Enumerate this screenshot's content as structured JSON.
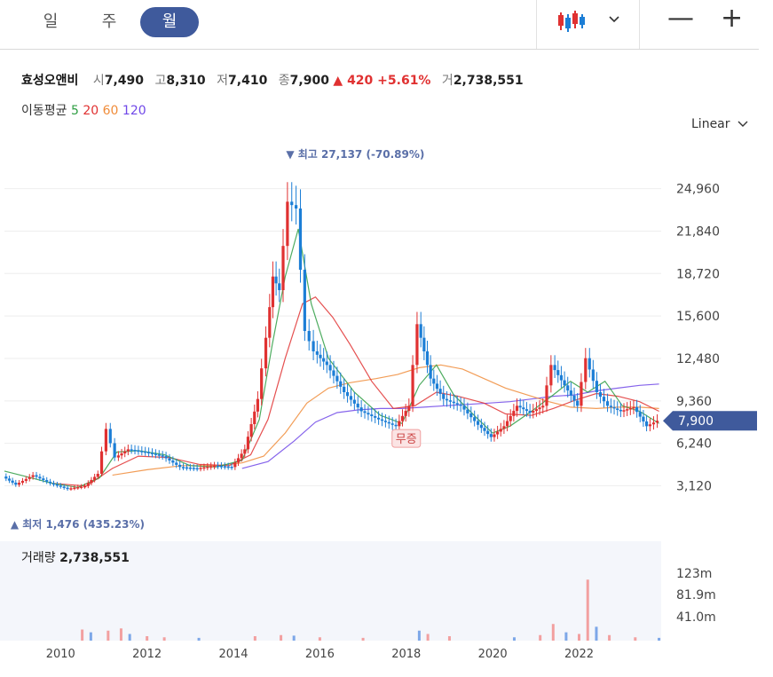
{
  "tabs": [
    {
      "label": "일",
      "active": false
    },
    {
      "label": "주",
      "active": false
    },
    {
      "label": "월",
      "active": true
    }
  ],
  "toolbar": {
    "chart_type_icon": "candlestick-icon",
    "dropdown_icon": "chevron-down-icon",
    "zoom_out": "—",
    "zoom_in": "+"
  },
  "quote": {
    "name": "효성오앤비",
    "open_label": "시",
    "open": "7,490",
    "high_label": "고",
    "high": "8,310",
    "low_label": "저",
    "low": "7,410",
    "close_label": "종",
    "close": "7,900",
    "change": "▲ 420 +5.61%",
    "volume_label": "거",
    "volume": "2,738,551"
  },
  "moving_average": {
    "label": "이동평균",
    "periods": [
      {
        "label": "5",
        "color": "#2f9e44"
      },
      {
        "label": "20",
        "color": "#e03131"
      },
      {
        "label": "60",
        "color": "#f08c3a"
      },
      {
        "label": "120",
        "color": "#7048e8"
      }
    ]
  },
  "scale_mode": "Linear",
  "volume_panel": {
    "label": "거래량",
    "value": "2,738,551",
    "ticks": [
      "123m",
      "81.9m",
      "41.0m"
    ]
  },
  "chart_data": {
    "type": "candlestick",
    "period": "monthly",
    "x_ticks": [
      "2010",
      "2012",
      "2014",
      "2016",
      "2018",
      "2020",
      "2022"
    ],
    "y_ticks": [
      24960,
      21840,
      18720,
      15600,
      12480,
      9360,
      6240,
      3120
    ],
    "y_tick_labels": [
      "24,960",
      "21,840",
      "18,720",
      "15,600",
      "12,480",
      "9,360",
      "6,240",
      "3,120"
    ],
    "ylim": [
      1000,
      28000
    ],
    "x_range": [
      2008.7,
      2023.9
    ],
    "current_price": 7900,
    "current_price_label": "7,900",
    "high_annotation": {
      "text": "최고 27,137 (-70.89%)",
      "value": 27137,
      "x": 2015.3
    },
    "low_annotation": {
      "text": "최저 1,476 (435.23%)",
      "value": 1476,
      "x": 2008.8
    },
    "event_marker": {
      "text": "무증",
      "x": 2018.0,
      "value": 6600
    },
    "price_series": [
      [
        2008.7,
        3800
      ],
      [
        2009.0,
        3200
      ],
      [
        2009.4,
        3900
      ],
      [
        2009.8,
        3300
      ],
      [
        2010.2,
        2900
      ],
      [
        2010.6,
        3100
      ],
      [
        2010.9,
        4000
      ],
      [
        2011.1,
        7300
      ],
      [
        2011.3,
        5200
      ],
      [
        2011.6,
        5800
      ],
      [
        2012.0,
        5600
      ],
      [
        2012.4,
        5300
      ],
      [
        2012.8,
        4500
      ],
      [
        2013.2,
        4400
      ],
      [
        2013.6,
        4600
      ],
      [
        2014.0,
        4500
      ],
      [
        2014.3,
        5800
      ],
      [
        2014.6,
        9500
      ],
      [
        2014.8,
        14000
      ],
      [
        2014.95,
        18500
      ],
      [
        2015.1,
        17500
      ],
      [
        2015.3,
        24000
      ],
      [
        2015.5,
        23500
      ],
      [
        2015.7,
        14500
      ],
      [
        2015.9,
        13000
      ],
      [
        2016.2,
        12000
      ],
      [
        2016.6,
        10000
      ],
      [
        2017.0,
        8600
      ],
      [
        2017.4,
        8000
      ],
      [
        2017.8,
        7500
      ],
      [
        2018.1,
        9000
      ],
      [
        2018.3,
        15000
      ],
      [
        2018.6,
        11000
      ],
      [
        2018.9,
        9500
      ],
      [
        2019.3,
        9000
      ],
      [
        2019.7,
        7600
      ],
      [
        2020.0,
        6700
      ],
      [
        2020.3,
        7500
      ],
      [
        2020.6,
        9000
      ],
      [
        2020.9,
        8500
      ],
      [
        2021.2,
        9000
      ],
      [
        2021.4,
        12000
      ],
      [
        2021.7,
        10500
      ],
      [
        2022.0,
        9000
      ],
      [
        2022.2,
        12500
      ],
      [
        2022.45,
        10000
      ],
      [
        2022.7,
        9000
      ],
      [
        2023.0,
        8600
      ],
      [
        2023.3,
        8900
      ],
      [
        2023.6,
        7500
      ],
      [
        2023.85,
        7900
      ]
    ],
    "ma5": [
      [
        2008.7,
        4200
      ],
      [
        2009.2,
        3800
      ],
      [
        2009.8,
        3300
      ],
      [
        2010.4,
        3000
      ],
      [
        2010.9,
        3700
      ],
      [
        2011.3,
        5600
      ],
      [
        2011.8,
        5700
      ],
      [
        2012.4,
        5400
      ],
      [
        2013.0,
        4600
      ],
      [
        2013.6,
        4500
      ],
      [
        2014.2,
        5000
      ],
      [
        2014.6,
        8000
      ],
      [
        2014.9,
        13500
      ],
      [
        2015.2,
        18500
      ],
      [
        2015.5,
        22000
      ],
      [
        2015.8,
        16500
      ],
      [
        2016.2,
        12500
      ],
      [
        2016.8,
        10000
      ],
      [
        2017.4,
        8300
      ],
      [
        2017.9,
        7700
      ],
      [
        2018.3,
        10500
      ],
      [
        2018.7,
        12000
      ],
      [
        2019.1,
        9800
      ],
      [
        2019.6,
        8200
      ],
      [
        2020.0,
        7000
      ],
      [
        2020.4,
        7500
      ],
      [
        2020.9,
        8600
      ],
      [
        2021.4,
        9800
      ],
      [
        2021.8,
        10800
      ],
      [
        2022.2,
        10000
      ],
      [
        2022.6,
        10800
      ],
      [
        2023.0,
        9000
      ],
      [
        2023.4,
        8600
      ],
      [
        2023.85,
        7700
      ]
    ],
    "ma20": [
      [
        2009.8,
        3300
      ],
      [
        2010.6,
        3100
      ],
      [
        2011.2,
        4400
      ],
      [
        2011.8,
        5300
      ],
      [
        2012.5,
        5200
      ],
      [
        2013.2,
        4700
      ],
      [
        2013.9,
        4600
      ],
      [
        2014.4,
        5400
      ],
      [
        2014.8,
        8000
      ],
      [
        2015.2,
        12500
      ],
      [
        2015.6,
        16500
      ],
      [
        2015.9,
        17000
      ],
      [
        2016.3,
        15500
      ],
      [
        2016.7,
        13500
      ],
      [
        2017.2,
        10800
      ],
      [
        2017.7,
        8800
      ],
      [
        2018.2,
        9000
      ],
      [
        2018.7,
        10000
      ],
      [
        2019.2,
        9700
      ],
      [
        2019.8,
        9200
      ],
      [
        2020.3,
        8400
      ],
      [
        2020.9,
        8300
      ],
      [
        2021.4,
        8800
      ],
      [
        2021.9,
        9400
      ],
      [
        2022.4,
        9900
      ],
      [
        2022.9,
        9700
      ],
      [
        2023.4,
        9300
      ],
      [
        2023.85,
        8600
      ]
    ],
    "ma60": [
      [
        2011.2,
        3900
      ],
      [
        2012.0,
        4300
      ],
      [
        2012.8,
        4600
      ],
      [
        2013.6,
        4600
      ],
      [
        2014.2,
        4800
      ],
      [
        2014.7,
        5300
      ],
      [
        2015.2,
        7000
      ],
      [
        2015.7,
        9200
      ],
      [
        2016.2,
        10300
      ],
      [
        2016.7,
        10700
      ],
      [
        2017.3,
        11000
      ],
      [
        2017.8,
        11300
      ],
      [
        2018.3,
        11800
      ],
      [
        2018.8,
        12000
      ],
      [
        2019.3,
        11700
      ],
      [
        2019.8,
        11000
      ],
      [
        2020.3,
        10300
      ],
      [
        2020.8,
        9800
      ],
      [
        2021.3,
        9300
      ],
      [
        2021.8,
        8900
      ],
      [
        2022.4,
        8800
      ],
      [
        2022.9,
        8900
      ],
      [
        2023.4,
        8900
      ],
      [
        2023.85,
        8800
      ]
    ],
    "ma120": [
      [
        2014.2,
        4400
      ],
      [
        2014.8,
        4900
      ],
      [
        2015.4,
        6400
      ],
      [
        2015.9,
        7800
      ],
      [
        2016.4,
        8500
      ],
      [
        2016.9,
        8700
      ],
      [
        2017.4,
        8800
      ],
      [
        2017.9,
        8800
      ],
      [
        2018.4,
        8900
      ],
      [
        2018.9,
        9000
      ],
      [
        2019.4,
        9100
      ],
      [
        2019.9,
        9200
      ],
      [
        2020.4,
        9300
      ],
      [
        2020.9,
        9500
      ],
      [
        2021.4,
        9700
      ],
      [
        2021.9,
        9800
      ],
      [
        2022.4,
        10100
      ],
      [
        2022.9,
        10300
      ],
      [
        2023.4,
        10500
      ],
      [
        2023.85,
        10600
      ]
    ],
    "volume_series": [
      [
        2010.5,
        20
      ],
      [
        2010.7,
        15
      ],
      [
        2011.1,
        18
      ],
      [
        2011.4,
        22
      ],
      [
        2011.6,
        12
      ],
      [
        2012.0,
        8
      ],
      [
        2012.4,
        6
      ],
      [
        2013.2,
        5
      ],
      [
        2014.5,
        8
      ],
      [
        2015.1,
        10
      ],
      [
        2015.4,
        9
      ],
      [
        2016.0,
        6
      ],
      [
        2017.0,
        5
      ],
      [
        2018.3,
        18
      ],
      [
        2018.5,
        12
      ],
      [
        2019.0,
        8
      ],
      [
        2020.5,
        6
      ],
      [
        2021.1,
        10
      ],
      [
        2021.4,
        30
      ],
      [
        2021.7,
        15
      ],
      [
        2022.0,
        12
      ],
      [
        2022.2,
        110
      ],
      [
        2022.4,
        25
      ],
      [
        2022.7,
        10
      ],
      [
        2023.3,
        6
      ],
      [
        2023.85,
        5
      ]
    ]
  }
}
